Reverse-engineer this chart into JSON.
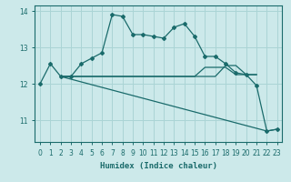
{
  "background_color": "#cce9ea",
  "grid_color": "#aad4d5",
  "line_color": "#1a6b6b",
  "xlabel": "Humidex (Indice chaleur)",
  "xlim": [
    -0.5,
    23.5
  ],
  "ylim": [
    10.4,
    14.15
  ],
  "yticks": [
    11,
    12,
    13,
    14
  ],
  "xticks": [
    0,
    1,
    2,
    3,
    4,
    5,
    6,
    7,
    8,
    9,
    10,
    11,
    12,
    13,
    14,
    15,
    16,
    17,
    18,
    19,
    20,
    21,
    22,
    23
  ],
  "line1_x": [
    0,
    1,
    2,
    3,
    4,
    5,
    6,
    7,
    8,
    9,
    10,
    11,
    12,
    13,
    14,
    15,
    16,
    17,
    18,
    19,
    20,
    21,
    22,
    23
  ],
  "line1_y": [
    12.0,
    12.55,
    12.2,
    12.2,
    12.55,
    12.7,
    12.85,
    13.9,
    13.85,
    13.35,
    13.35,
    13.3,
    13.25,
    13.55,
    13.65,
    13.3,
    12.75,
    12.75,
    12.55,
    12.3,
    12.25,
    11.95,
    10.7,
    10.75
  ],
  "line2_x": [
    2,
    22,
    23
  ],
  "line2_y": [
    12.2,
    10.7,
    10.75
  ],
  "line3_x": [
    2,
    10,
    11,
    12,
    13,
    14,
    15,
    16,
    17,
    18,
    19,
    20,
    21
  ],
  "line3_y": [
    12.2,
    12.2,
    12.2,
    12.2,
    12.2,
    12.2,
    12.2,
    12.2,
    12.2,
    12.5,
    12.5,
    12.25,
    12.25
  ],
  "line4_x": [
    2,
    10,
    11,
    12,
    13,
    14,
    15,
    16,
    17,
    18,
    19,
    20,
    21
  ],
  "line4_y": [
    12.2,
    12.2,
    12.2,
    12.2,
    12.2,
    12.2,
    12.2,
    12.45,
    12.45,
    12.45,
    12.25,
    12.25,
    12.25
  ]
}
